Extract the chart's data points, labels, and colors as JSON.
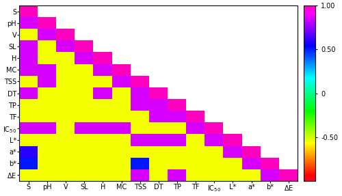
{
  "labels_y": [
    "S",
    "pH",
    "V",
    "SL",
    "H",
    "MC",
    "TSS",
    "DT",
    "TP",
    "TF",
    "IC$_{50}$",
    "L*",
    "a*",
    "b*",
    "ΔE"
  ],
  "labels_x": [
    "S",
    "pH",
    "V",
    "SL",
    "H",
    "MC",
    "TSS",
    "DT",
    "TP",
    "TF",
    "IC$_{50}$",
    "L*",
    "a*",
    "b*",
    "ΔE"
  ],
  "n": 15,
  "matrix": [
    [
      1.0,
      0.85,
      -0.55,
      0.85,
      0.85,
      0.85,
      -0.55,
      0.85,
      -0.55,
      -0.55,
      0.85,
      -0.55,
      0.6,
      0.5,
      -0.55
    ],
    [
      0.85,
      1.0,
      0.85,
      -0.55,
      -0.55,
      0.85,
      0.85,
      -0.55,
      -0.55,
      -0.55,
      0.85,
      -0.55,
      -0.55,
      -0.55,
      -0.55
    ],
    [
      -0.55,
      0.85,
      1.0,
      0.85,
      -0.55,
      -0.55,
      -0.55,
      -0.55,
      -0.55,
      -0.55,
      -0.55,
      -0.55,
      -0.55,
      -0.55,
      -0.55
    ],
    [
      0.85,
      -0.55,
      0.85,
      1.0,
      0.85,
      -0.55,
      -0.55,
      -0.55,
      -0.55,
      -0.55,
      0.85,
      -0.55,
      -0.55,
      -0.55,
      -0.55
    ],
    [
      0.85,
      -0.55,
      -0.55,
      0.85,
      1.0,
      0.85,
      -0.55,
      0.85,
      -0.55,
      -0.55,
      0.85,
      -0.55,
      -0.55,
      -0.55,
      -0.55
    ],
    [
      0.85,
      0.85,
      -0.55,
      -0.55,
      0.85,
      1.0,
      0.85,
      -0.55,
      -0.55,
      -0.55,
      0.85,
      -0.55,
      -0.55,
      -0.55,
      -0.55
    ],
    [
      -0.55,
      0.85,
      -0.55,
      -0.55,
      -0.55,
      0.85,
      1.0,
      0.85,
      0.85,
      -0.55,
      -0.55,
      0.85,
      -0.55,
      0.5,
      0.85
    ],
    [
      0.85,
      -0.55,
      -0.55,
      -0.55,
      0.85,
      -0.55,
      0.85,
      1.0,
      0.85,
      0.85,
      -0.55,
      0.85,
      -0.55,
      -0.55,
      -0.55
    ],
    [
      -0.55,
      -0.55,
      -0.55,
      -0.55,
      -0.55,
      -0.55,
      0.85,
      0.85,
      1.0,
      0.85,
      -0.55,
      0.85,
      -0.55,
      -0.55,
      0.85
    ],
    [
      -0.55,
      -0.55,
      -0.55,
      -0.55,
      -0.55,
      -0.55,
      -0.55,
      0.85,
      0.85,
      1.0,
      0.85,
      -0.55,
      -0.55,
      -0.55,
      -0.55
    ],
    [
      0.85,
      0.85,
      -0.55,
      0.85,
      0.85,
      0.85,
      -0.55,
      -0.55,
      -0.55,
      0.85,
      1.0,
      0.85,
      -0.55,
      -0.55,
      -0.55
    ],
    [
      -0.55,
      -0.55,
      -0.55,
      -0.55,
      -0.55,
      -0.55,
      0.85,
      0.85,
      0.85,
      -0.55,
      0.85,
      1.0,
      0.85,
      -0.55,
      -0.55
    ],
    [
      0.6,
      -0.55,
      -0.55,
      -0.55,
      -0.55,
      -0.55,
      -0.55,
      -0.55,
      -0.55,
      -0.55,
      -0.55,
      0.85,
      1.0,
      0.85,
      -0.55
    ],
    [
      0.5,
      -0.55,
      -0.55,
      -0.55,
      -0.55,
      -0.55,
      0.5,
      -0.55,
      -0.55,
      -0.55,
      -0.55,
      -0.55,
      0.85,
      1.0,
      0.85
    ],
    [
      -0.55,
      -0.55,
      -0.55,
      -0.55,
      -0.55,
      -0.55,
      0.85,
      -0.55,
      0.85,
      -0.55,
      -0.55,
      -0.55,
      -0.55,
      0.85,
      1.0
    ]
  ],
  "cmap": "gist_rainbow",
  "vmin": -1.0,
  "vmax": 1.0,
  "colorbar_ticks": [
    1.0,
    0.5,
    0.0,
    -0.5
  ],
  "colorbar_ticklabels": [
    "1.00",
    "0.50",
    "0",
    "-0.50"
  ],
  "figsize": [
    5.0,
    2.87
  ],
  "dpi": 100,
  "tick_fontsize": 7,
  "cbar_fontsize": 7
}
